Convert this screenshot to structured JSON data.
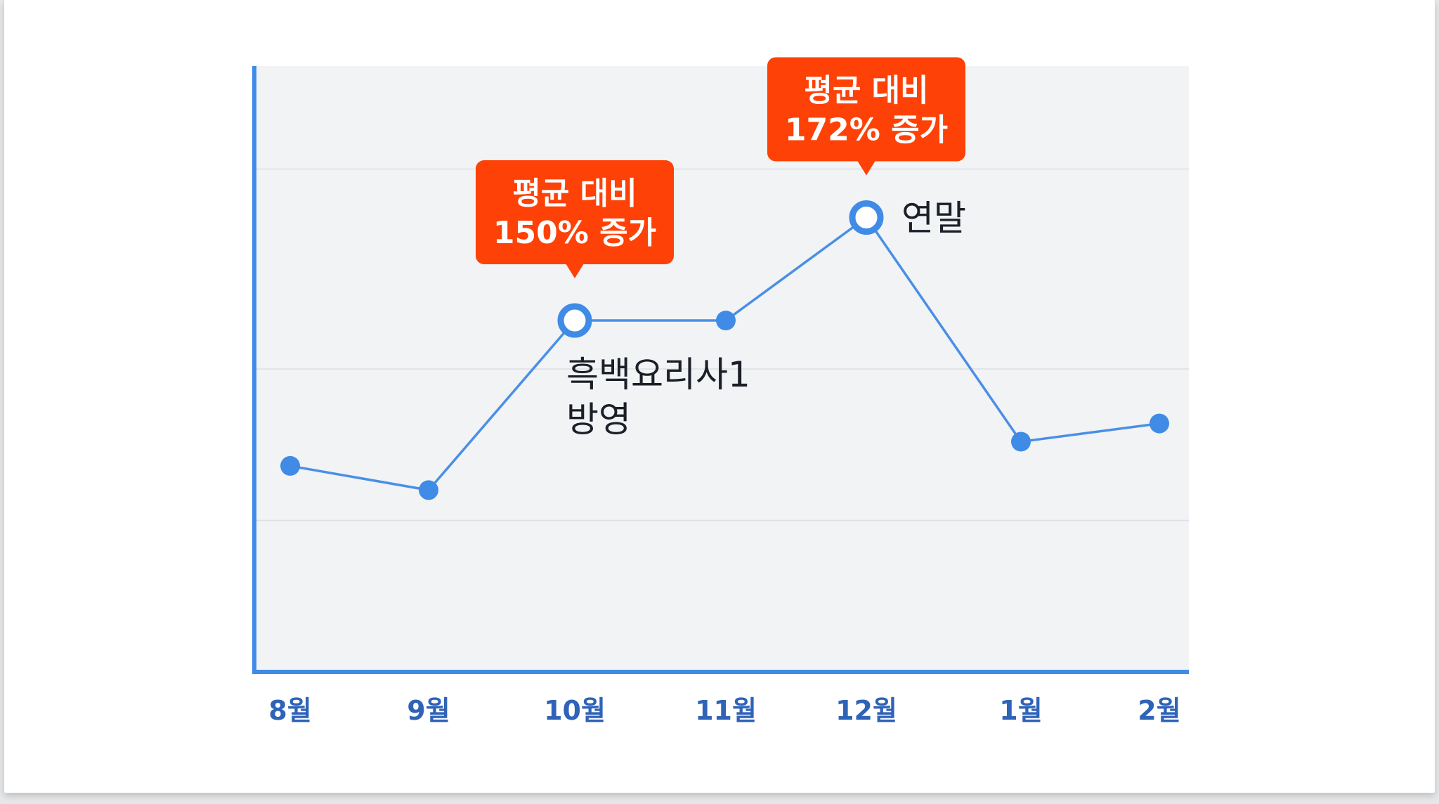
{
  "colors": {
    "line": "#4a8fe6",
    "axis": "#3f8be6",
    "plot_bg": "#f2f3f5",
    "grid": "#dcdfe3",
    "callout": "#fe4106",
    "label": "#2f63b8"
  },
  "chart_data": {
    "type": "line",
    "categories": [
      "8월",
      "9월",
      "10월",
      "11월",
      "12월",
      "1월",
      "2월"
    ],
    "values": [
      34,
      30,
      58,
      58,
      75,
      38,
      41
    ],
    "ylim": [
      0,
      100
    ],
    "grid": true,
    "highlights": [
      {
        "index": 2,
        "callout": [
          "평균 대비",
          "150% 증가"
        ],
        "note": [
          "흑백요리사1",
          "방영"
        ]
      },
      {
        "index": 4,
        "callout": [
          "평균 대비",
          "172% 증가"
        ],
        "note": [
          "연말"
        ]
      }
    ]
  }
}
